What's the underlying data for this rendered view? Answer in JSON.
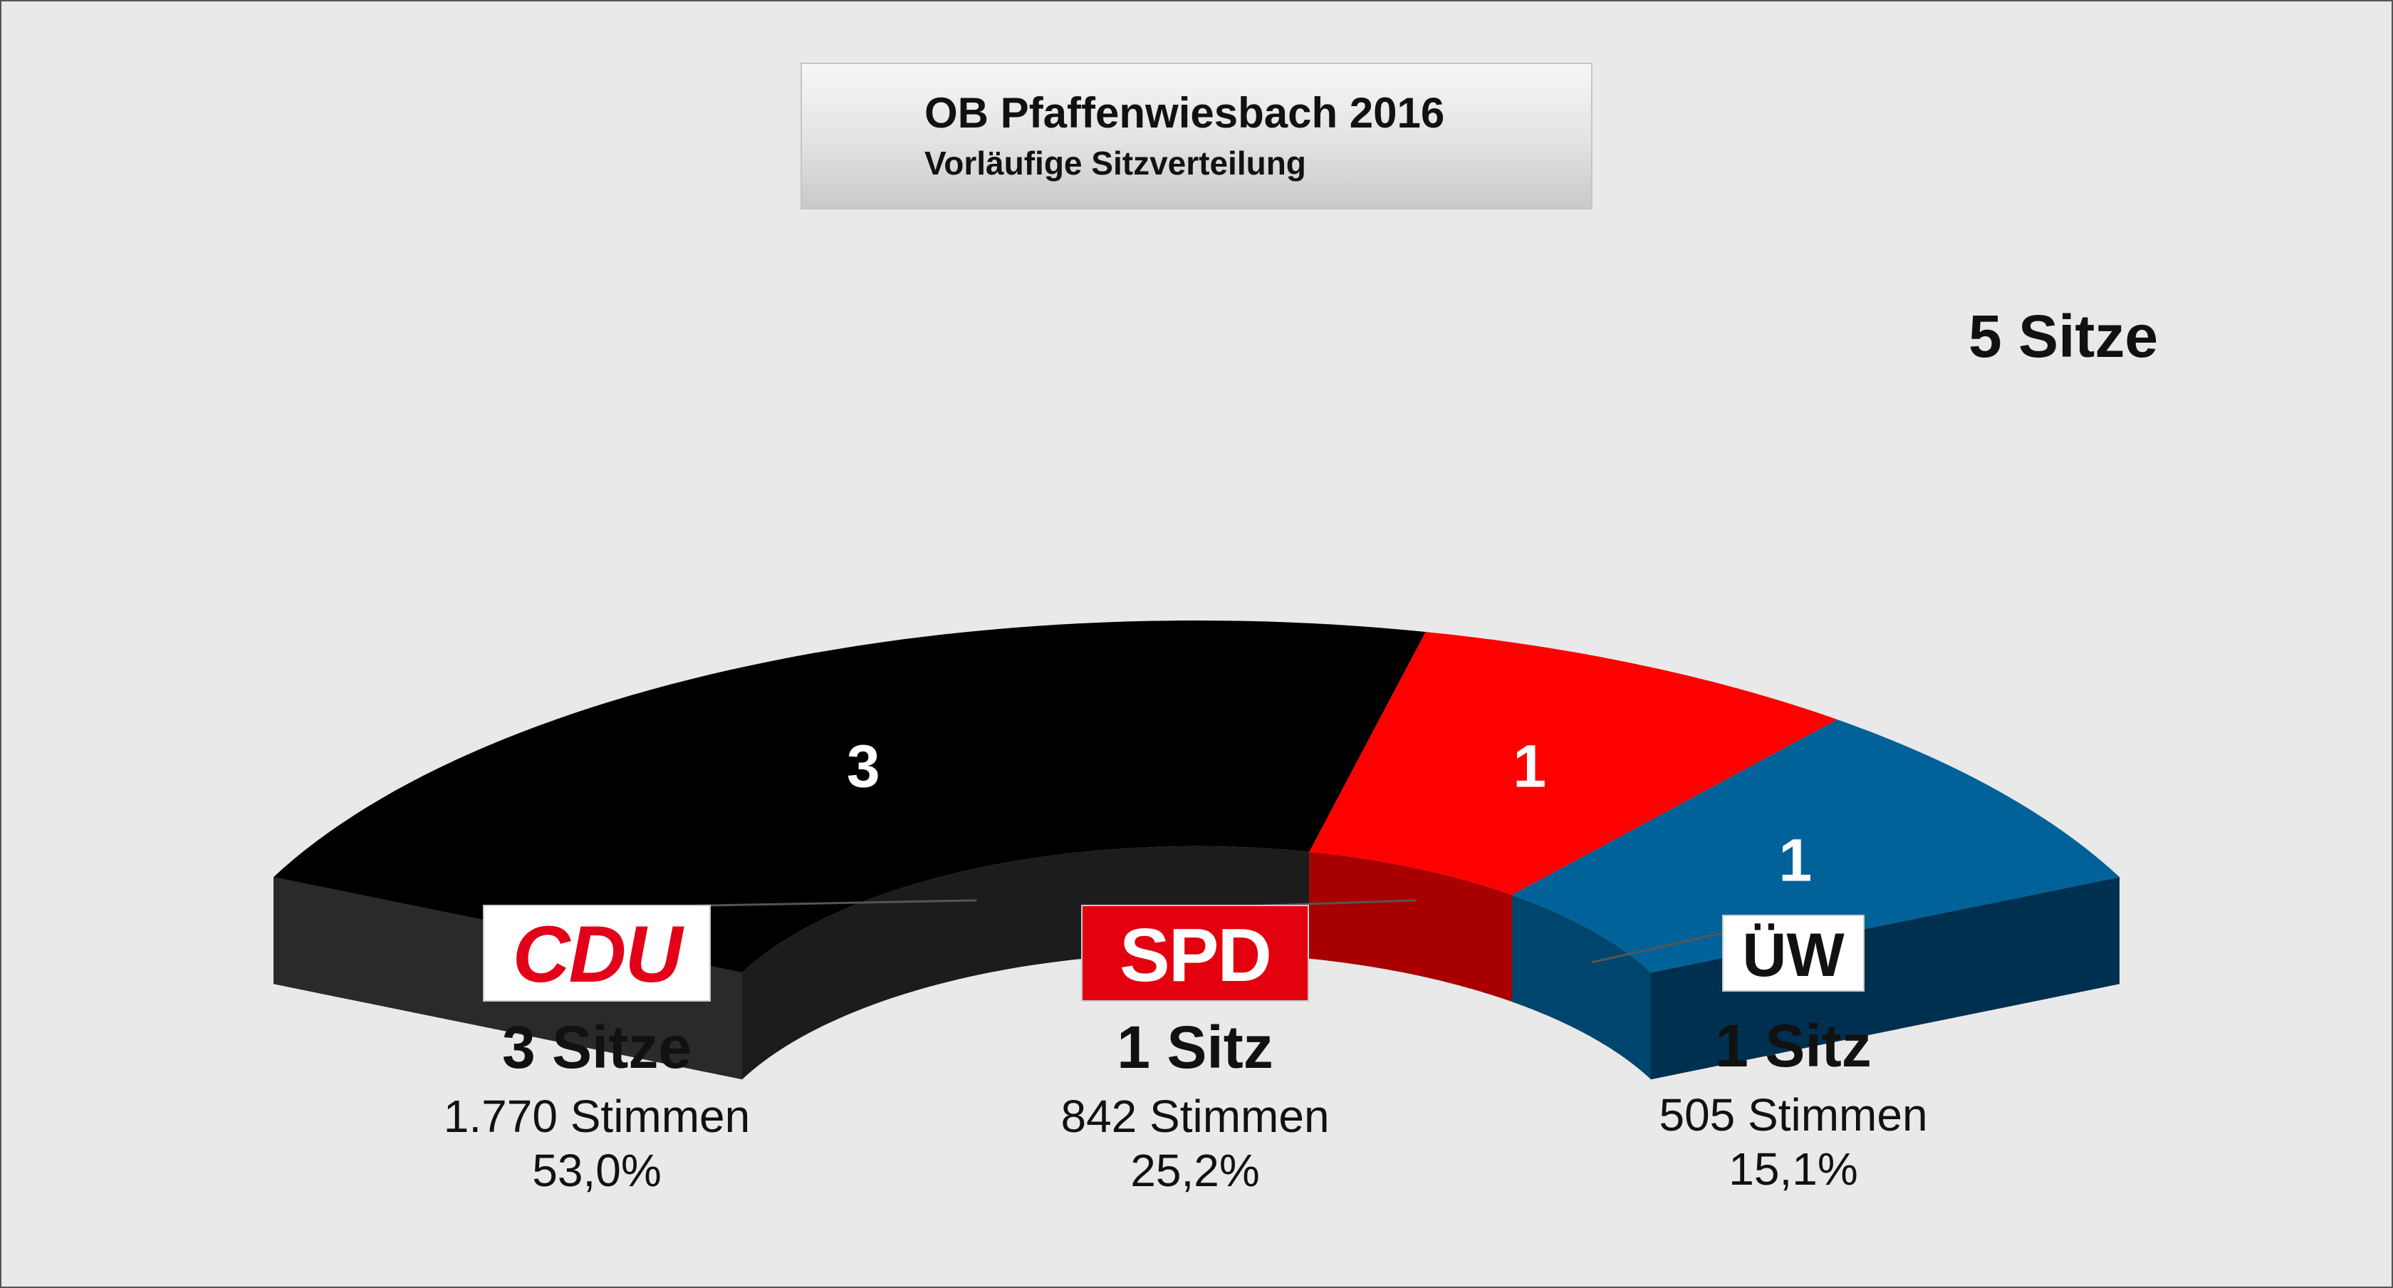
{
  "header": {
    "title": "OB Pfaffenwiesbach 2016",
    "subtitle": "Vorläufige Sitzverteilung"
  },
  "total_label": "5 Sitze",
  "parties": [
    {
      "logo": "CDU",
      "seats_label": "3 Sitze",
      "votes_label": "1.770 Stimmen",
      "pct_label": "53,0%"
    },
    {
      "logo": "SPD",
      "seats_label": "1 Sitz",
      "votes_label": "842 Stimmen",
      "pct_label": "25,2%"
    },
    {
      "logo": "ÜW",
      "seats_label": "1 Sitz",
      "votes_label": "505 Stimmen",
      "pct_label": "15,1%"
    }
  ],
  "chart_data": {
    "type": "pie",
    "title": "OB Pfaffenwiesbach 2016",
    "subtitle": "Vorläufige Sitzverteilung",
    "total": 5,
    "categories": [
      "CDU",
      "SPD",
      "ÜW"
    ],
    "values": [
      3,
      1,
      1
    ],
    "votes": [
      1770,
      842,
      505
    ],
    "percent": [
      53.0,
      25.2,
      15.1
    ],
    "colors": {
      "CDU": {
        "top": "#000000",
        "side": "#1c1c1c"
      },
      "SPD": {
        "top": "#ff0000",
        "side": "#a80000"
      },
      "ÜW": {
        "top": "#006299",
        "side": "#00456d",
        "outer_side": "#00304f"
      }
    }
  }
}
